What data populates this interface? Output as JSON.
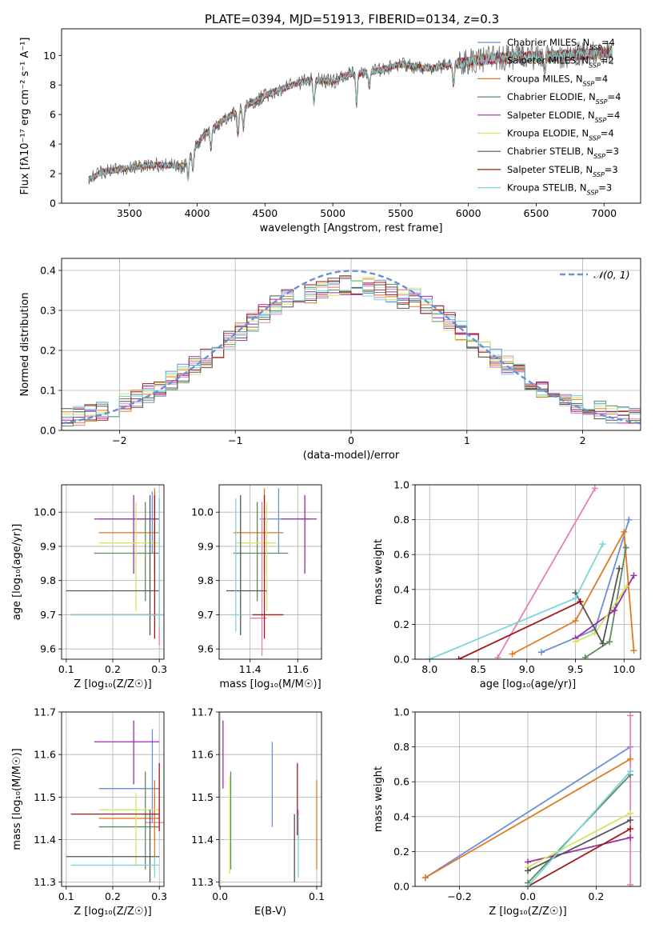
{
  "figure": {
    "title": "PLATE=0394, MJD=51913, FIBERID=0134, z=0.3"
  },
  "colors": {
    "Chabrier MILES": "#6a8fd8",
    "Salpeter MILES": "#e87eb8",
    "Kroupa MILES": "#e07a20",
    "Chabrier ELODIE": "#5e8a5e",
    "Salpeter ELODIE": "#9c2ca8",
    "Kroupa ELODIE": "#d6e560",
    "Chabrier STELIB": "#555555",
    "Salpeter STELIB": "#a31818",
    "Kroupa STELIB": "#7dd3dc",
    "normal": "#6a8fd8"
  },
  "chart_data": [
    {
      "id": "spectrum",
      "type": "line",
      "title": "PLATE=0394, MJD=51913, FIBERID=0134, z=0.3",
      "xlabel": "wavelength [Angstrom, rest frame]",
      "ylabel": "Flux [fλ10⁻¹⁷ erg cm⁻² s⁻¹ A⁻¹]",
      "xlim": [
        3000,
        7270
      ],
      "ylim": [
        0,
        11.8
      ],
      "xticks": [
        "3500",
        "4000",
        "4500",
        "5000",
        "5500",
        "6000",
        "6500",
        "7000"
      ],
      "yticks": [
        "0",
        "2",
        "4",
        "6",
        "8",
        "10"
      ],
      "grid": false,
      "legend_position": "top-right",
      "x_range": [
        3200,
        7060
      ],
      "anchor_x": [
        3200,
        3300,
        3500,
        3700,
        3900,
        3950,
        4050,
        4200,
        4350,
        4500,
        4700,
        4850,
        5000,
        5100,
        5300,
        5500,
        5700,
        5900,
        6100,
        6300,
        6500,
        6700,
        6900,
        7060
      ],
      "anchor_y": [
        1.6,
        2.1,
        2.4,
        2.6,
        2.5,
        3.3,
        4.6,
        5.7,
        6.5,
        7.3,
        8.0,
        8.4,
        8.2,
        8.7,
        8.9,
        9.4,
        9.1,
        9.4,
        9.7,
        9.9,
        9.9,
        10.0,
        10.1,
        10.2
      ],
      "series": [
        {
          "name": "Chabrier MILES",
          "label": "Chabrier MILES, N",
          "sub": "SSP",
          "n": "=4"
        },
        {
          "name": "Salpeter MILES",
          "label": "Salpeter MILES, N",
          "sub": "SSP",
          "n": "=2"
        },
        {
          "name": "Kroupa MILES",
          "label": "Kroupa MILES, N",
          "sub": "SSP",
          "n": "=4"
        },
        {
          "name": "Chabrier ELODIE",
          "label": "Chabrier ELODIE, N",
          "sub": "SSP",
          "n": "=4"
        },
        {
          "name": "Salpeter ELODIE",
          "label": "Salpeter ELODIE, N",
          "sub": "SSP",
          "n": "=4"
        },
        {
          "name": "Kroupa ELODIE",
          "label": "Kroupa ELODIE, N",
          "sub": "SSP",
          "n": "=4"
        },
        {
          "name": "Chabrier STELIB",
          "label": "Chabrier STELIB, N",
          "sub": "SSP",
          "n": "=3"
        },
        {
          "name": "Salpeter STELIB",
          "label": "Salpeter STELIB, N",
          "sub": "SSP",
          "n": "=3"
        },
        {
          "name": "Kroupa STELIB",
          "label": "Kroupa STELIB, N",
          "sub": "SSP",
          "n": "=3"
        }
      ]
    },
    {
      "id": "residuals",
      "type": "histogram",
      "xlabel": "(data-model)/error",
      "ylabel": "Normed distribution",
      "xlim": [
        -2.5,
        2.5
      ],
      "ylim": [
        0,
        0.43
      ],
      "xticks": [
        "−2",
        "−1",
        "0",
        "1",
        "2"
      ],
      "yticks": [
        "0.0",
        "0.1",
        "0.2",
        "0.3",
        "0.4"
      ],
      "grid": true,
      "legend_position": "top-right",
      "legend_label": "𝒩(0, 1)",
      "bin_width": 0.1,
      "bin_start": -2.5
    },
    {
      "id": "age-vs-Z",
      "type": "scatter",
      "xlabel": "Z [log₁₀(Z/Z☉)]",
      "ylabel": "age  [log₁₀(age/yr)]",
      "xlim": [
        0.09,
        0.31
      ],
      "ylim": [
        9.57,
        10.08
      ],
      "xticks": [
        "0.1",
        "0.2",
        "0.3"
      ],
      "yticks": [
        "9.6",
        "9.7",
        "9.8",
        "9.9",
        "10.0"
      ],
      "grid": true,
      "points": [
        {
          "name": "Chabrier MILES",
          "x": 0.285,
          "y": 9.98,
          "x_lo": 0.17,
          "x_hi": 0.3,
          "y_lo": 9.88,
          "y_hi": 10.06
        },
        {
          "name": "Salpeter MILES",
          "x": 0.3,
          "y": 9.7,
          "x_lo": 0.27,
          "x_hi": 0.31,
          "y_lo": 9.61,
          "y_hi": 10.04
        },
        {
          "name": "Kroupa MILES",
          "x": 0.29,
          "y": 9.94,
          "x_lo": 0.17,
          "x_hi": 0.3,
          "y_lo": 9.82,
          "y_hi": 10.07
        },
        {
          "name": "Chabrier ELODIE",
          "x": 0.27,
          "y": 9.88,
          "x_lo": 0.16,
          "x_hi": 0.3,
          "y_lo": 9.74,
          "y_hi": 10.03
        },
        {
          "name": "Salpeter ELODIE",
          "x": 0.245,
          "y": 9.98,
          "x_lo": 0.16,
          "x_hi": 0.3,
          "y_lo": 9.82,
          "y_hi": 10.05
        },
        {
          "name": "Kroupa ELODIE",
          "x": 0.25,
          "y": 9.91,
          "x_lo": 0.17,
          "x_hi": 0.3,
          "y_lo": 9.71,
          "y_hi": 10.03
        },
        {
          "name": "Chabrier STELIB",
          "x": 0.28,
          "y": 9.77,
          "x_lo": 0.1,
          "x_hi": 0.3,
          "y_lo": 9.64,
          "y_hi": 10.05
        },
        {
          "name": "Salpeter STELIB",
          "x": 0.29,
          "y": 9.7,
          "x_lo": 0.11,
          "x_hi": 0.3,
          "y_lo": 9.63,
          "y_hi": 10.05
        },
        {
          "name": "Kroupa STELIB",
          "x": 0.3,
          "y": 9.7,
          "x_lo": 0.11,
          "x_hi": 0.31,
          "y_lo": 9.66,
          "y_hi": 10.04
        }
      ]
    },
    {
      "id": "age-vs-mass",
      "type": "scatter",
      "xlabel": "mass [log₁₀(M/M☉)]",
      "ylabel": "",
      "xlim": [
        11.27,
        11.7
      ],
      "ylim": [
        9.57,
        10.08
      ],
      "xticks": [
        "11.4",
        "11.6"
      ],
      "yticks": [
        "9.6",
        "9.7",
        "9.8",
        "9.9",
        "10.0"
      ],
      "grid": true,
      "points": [
        {
          "name": "Chabrier MILES",
          "x": 11.52,
          "y": 9.98,
          "x_lo": 11.44,
          "x_hi": 11.66,
          "y_lo": 9.88,
          "y_hi": 10.07
        },
        {
          "name": "Salpeter MILES",
          "x": 11.45,
          "y": 9.69,
          "x_lo": 11.4,
          "x_hi": 11.47,
          "y_lo": 9.58,
          "y_hi": 10.03
        },
        {
          "name": "Kroupa MILES",
          "x": 11.46,
          "y": 9.94,
          "x_lo": 11.33,
          "x_hi": 11.54,
          "y_lo": 9.82,
          "y_hi": 10.07
        },
        {
          "name": "Chabrier ELODIE",
          "x": 11.43,
          "y": 9.88,
          "x_lo": 11.33,
          "x_hi": 11.56,
          "y_lo": 9.74,
          "y_hi": 10.03
        },
        {
          "name": "Salpeter ELODIE",
          "x": 11.63,
          "y": 9.98,
          "x_lo": 11.53,
          "x_hi": 11.68,
          "y_lo": 9.82,
          "y_hi": 10.05
        },
        {
          "name": "Kroupa ELODIE",
          "x": 11.47,
          "y": 9.91,
          "x_lo": 11.34,
          "x_hi": 11.51,
          "y_lo": 9.71,
          "y_hi": 10.03
        },
        {
          "name": "Chabrier STELIB",
          "x": 11.36,
          "y": 9.77,
          "x_lo": 11.3,
          "x_hi": 11.47,
          "y_lo": 9.64,
          "y_hi": 10.05
        },
        {
          "name": "Salpeter STELIB",
          "x": 11.46,
          "y": 9.7,
          "x_lo": 11.41,
          "x_hi": 11.54,
          "y_lo": 9.63,
          "y_hi": 10.05
        },
        {
          "name": "Kroupa STELIB",
          "x": 11.34,
          "y": 9.7,
          "x_lo": 11.31,
          "x_hi": 11.36,
          "y_lo": 9.65,
          "y_hi": 10.04
        }
      ]
    },
    {
      "id": "weight-vs-age",
      "type": "line",
      "xlabel": "age  [log₁₀(age/yr)]",
      "ylabel": "mass weight",
      "xlim": [
        7.85,
        10.17
      ],
      "ylim": [
        0,
        1
      ],
      "xticks": [
        "8.0",
        "8.5",
        "9.0",
        "9.5",
        "10.0"
      ],
      "yticks": [
        "0.0",
        "0.2",
        "0.4",
        "0.6",
        "0.8",
        "1.0"
      ],
      "grid": true,
      "series": [
        {
          "name": "Chabrier MILES",
          "x": [
            9.15,
            9.7,
            10.05
          ],
          "y": [
            0.04,
            0.17,
            0.8
          ]
        },
        {
          "name": "Salpeter MILES",
          "x": [
            8.7,
            9.7
          ],
          "y": [
            0.01,
            0.98
          ]
        },
        {
          "name": "Kroupa MILES",
          "x": [
            8.85,
            9.5,
            10.0,
            10.1
          ],
          "y": [
            0.03,
            0.22,
            0.73,
            0.05
          ]
        },
        {
          "name": "Chabrier ELODIE",
          "x": [
            9.6,
            9.85,
            10.02
          ],
          "y": [
            0.01,
            0.1,
            0.64
          ]
        },
        {
          "name": "Salpeter ELODIE",
          "x": [
            9.5,
            9.9,
            10.1
          ],
          "y": [
            0.12,
            0.28,
            0.48
          ]
        },
        {
          "name": "Kroupa ELODIE",
          "x": [
            9.5,
            9.7,
            10.03
          ],
          "y": [
            0.1,
            0.15,
            0.42
          ]
        },
        {
          "name": "Chabrier STELIB",
          "x": [
            9.5,
            9.78,
            9.95
          ],
          "y": [
            0.38,
            0.09,
            0.52
          ]
        },
        {
          "name": "Salpeter STELIB",
          "x": [
            8.3,
            9.55
          ],
          "y": [
            0.0,
            0.33
          ]
        },
        {
          "name": "Kroupa STELIB",
          "x": [
            8.0,
            9.5,
            9.78
          ],
          "y": [
            0.0,
            0.35,
            0.66
          ]
        }
      ]
    },
    {
      "id": "mass-vs-Z",
      "type": "scatter",
      "xlabel": "Z [log₁₀(Z/Z☉)]",
      "ylabel": "mass [log₁₀(M/M☉)]",
      "xlim": [
        0.09,
        0.31
      ],
      "ylim": [
        11.29,
        11.7
      ],
      "xticks": [
        "0.1",
        "0.2",
        "0.3"
      ],
      "yticks": [
        "11.3",
        "11.4",
        "11.5",
        "11.6",
        "11.7"
      ],
      "grid": true,
      "points": [
        {
          "name": "Chabrier MILES",
          "x": 0.285,
          "y": 11.52,
          "x_lo": 0.17,
          "x_hi": 0.3,
          "y_lo": 11.44,
          "y_hi": 11.66
        },
        {
          "name": "Salpeter MILES",
          "x": 0.29,
          "y": 11.44,
          "x_lo": 0.27,
          "x_hi": 0.31,
          "y_lo": 11.4,
          "y_hi": 11.48
        },
        {
          "name": "Kroupa MILES",
          "x": 0.29,
          "y": 11.45,
          "x_lo": 0.17,
          "x_hi": 0.3,
          "y_lo": 11.33,
          "y_hi": 11.54
        },
        {
          "name": "Chabrier ELODIE",
          "x": 0.27,
          "y": 11.43,
          "x_lo": 0.17,
          "x_hi": 0.3,
          "y_lo": 11.33,
          "y_hi": 11.56
        },
        {
          "name": "Salpeter ELODIE",
          "x": 0.245,
          "y": 11.63,
          "x_lo": 0.16,
          "x_hi": 0.3,
          "y_lo": 11.53,
          "y_hi": 11.68
        },
        {
          "name": "Kroupa ELODIE",
          "x": 0.25,
          "y": 11.47,
          "x_lo": 0.17,
          "x_hi": 0.3,
          "y_lo": 11.34,
          "y_hi": 11.51
        },
        {
          "name": "Chabrier STELIB",
          "x": 0.28,
          "y": 11.36,
          "x_lo": 0.1,
          "x_hi": 0.3,
          "y_lo": 11.3,
          "y_hi": 11.47
        },
        {
          "name": "Salpeter STELIB",
          "x": 0.3,
          "y": 11.46,
          "x_lo": 0.11,
          "x_hi": 0.3,
          "y_lo": 11.42,
          "y_hi": 11.58
        },
        {
          "name": "Kroupa STELIB",
          "x": 0.29,
          "y": 11.34,
          "x_lo": 0.11,
          "x_hi": 0.3,
          "y_lo": 11.31,
          "y_hi": 11.36
        }
      ]
    },
    {
      "id": "mass-vs-EBV",
      "type": "scatter",
      "xlabel": "E(B-V)",
      "ylabel": "",
      "xlim": [
        -0.001,
        0.105
      ],
      "ylim": [
        11.29,
        11.7
      ],
      "xticks": [
        "0.0",
        "0.1"
      ],
      "yticks": [
        "11.3",
        "11.4",
        "11.5",
        "11.6",
        "11.7"
      ],
      "grid": true,
      "points": [
        {
          "name": "Chabrier MILES",
          "x": 0.054,
          "y": 11.53,
          "y_lo": 11.43,
          "y_hi": 11.63
        },
        {
          "name": "Salpeter MILES",
          "x": 0.081,
          "y": 11.44,
          "y_lo": 11.4,
          "y_hi": 11.47
        },
        {
          "name": "Kroupa MILES",
          "x": 0.1,
          "y": 11.44,
          "y_lo": 11.33,
          "y_hi": 11.54
        },
        {
          "name": "Chabrier ELODIE",
          "x": 0.011,
          "y": 11.45,
          "y_lo": 11.33,
          "y_hi": 11.56
        },
        {
          "name": "Salpeter ELODIE",
          "x": 0.003,
          "y": 11.6,
          "y_lo": 11.52,
          "y_hi": 11.68
        },
        {
          "name": "Kroupa ELODIE",
          "x": 0.01,
          "y": 11.43,
          "y_lo": 11.32,
          "y_hi": 11.55
        },
        {
          "name": "Chabrier STELIB",
          "x": 0.077,
          "y": 11.36,
          "y_lo": 11.3,
          "y_hi": 11.46
        },
        {
          "name": "Salpeter STELIB",
          "x": 0.08,
          "y": 11.5,
          "y_lo": 11.41,
          "y_hi": 11.58
        },
        {
          "name": "Kroupa STELIB",
          "x": 0.081,
          "y": 11.38,
          "y_lo": 11.31,
          "y_hi": 11.46
        }
      ]
    },
    {
      "id": "weight-vs-Z",
      "type": "line",
      "xlabel": "Z [log₁₀(Z/Z☉)]",
      "ylabel": "mass weight",
      "xlim": [
        -0.33,
        0.33
      ],
      "ylim": [
        0,
        1
      ],
      "xticks": [
        "−0.2",
        "0.0",
        "0.2"
      ],
      "yticks": [
        "0.0",
        "0.2",
        "0.4",
        "0.6",
        "0.8",
        "1.0"
      ],
      "grid": true,
      "series": [
        {
          "name": "Chabrier MILES",
          "x": [
            -0.3,
            0.3
          ],
          "y": [
            0.05,
            0.8
          ]
        },
        {
          "name": "Salpeter MILES",
          "x": [
            0.3,
            0.3
          ],
          "y": [
            0.01,
            0.98
          ]
        },
        {
          "name": "Kroupa MILES",
          "x": [
            -0.3,
            0.3
          ],
          "y": [
            0.05,
            0.73
          ]
        },
        {
          "name": "Chabrier ELODIE",
          "x": [
            0.0,
            0.3
          ],
          "y": [
            0.02,
            0.64
          ]
        },
        {
          "name": "Salpeter ELODIE",
          "x": [
            0.0,
            0.3
          ],
          "y": [
            0.14,
            0.28
          ]
        },
        {
          "name": "Kroupa ELODIE",
          "x": [
            0.0,
            0.3
          ],
          "y": [
            0.11,
            0.42
          ]
        },
        {
          "name": "Chabrier STELIB",
          "x": [
            0.0,
            0.3
          ],
          "y": [
            0.09,
            0.38
          ]
        },
        {
          "name": "Salpeter STELIB",
          "x": [
            0.0,
            0.3
          ],
          "y": [
            0.0,
            0.33
          ]
        },
        {
          "name": "Kroupa STELIB",
          "x": [
            0.0,
            0.3
          ],
          "y": [
            0.0,
            0.66
          ]
        }
      ]
    }
  ]
}
